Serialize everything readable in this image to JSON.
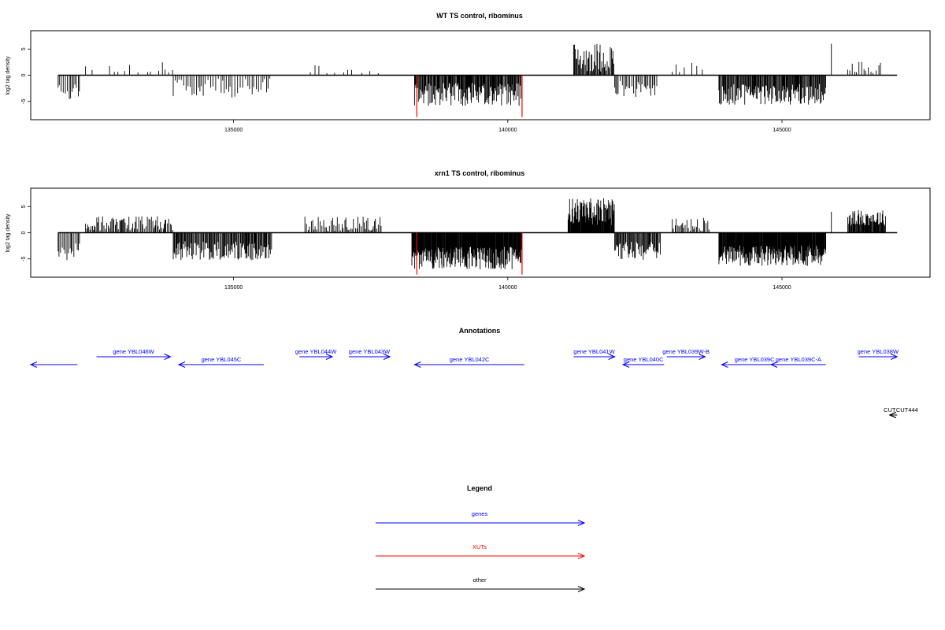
{
  "colors": {
    "genes": "#0000ff",
    "xuts": "#ff0000",
    "other": "#000000",
    "frame": "#000000"
  },
  "chart_data": [
    {
      "type": "bar",
      "title": "WT TS control, ribominus",
      "ylabel": "log2 tag density",
      "xlim": [
        131300,
        147700
      ],
      "ylim": [
        -8.5,
        8.5
      ],
      "xticks": [
        135000,
        140000,
        145000
      ],
      "yticks": [
        5,
        0,
        -5
      ],
      "xut_markers": [
        138340,
        140260
      ],
      "xut_depth": -8,
      "segments": [
        {
          "from": 131800,
          "to": 132200,
          "strand": "-",
          "mean": 2.6,
          "amp": 1.6,
          "step": 30
        },
        {
          "from": 132300,
          "to": 133900,
          "strand": "+",
          "mean": 0.3,
          "amp": 1.8,
          "step": 75,
          "sparse": true
        },
        {
          "from": 133900,
          "to": 135700,
          "strand": "-",
          "mean": 1.9,
          "amp": 1.8,
          "step": 38
        },
        {
          "from": 136400,
          "to": 137700,
          "strand": "+",
          "mean": 0.3,
          "amp": 1.4,
          "step": 110,
          "sparse": true
        },
        {
          "from": 138300,
          "to": 140250,
          "strand": "-",
          "mean": 3.0,
          "amp": 2.2,
          "step": 14
        },
        {
          "from": 141200,
          "to": 141950,
          "strand": "+",
          "mean": 2.6,
          "amp": 2.8,
          "step": 16
        },
        {
          "from": 141950,
          "to": 142750,
          "strand": "-",
          "mean": 2.0,
          "amp": 1.7,
          "step": 30
        },
        {
          "from": 143000,
          "to": 143600,
          "strand": "+",
          "mean": 0.6,
          "amp": 1.6,
          "step": 65,
          "sparse": true
        },
        {
          "from": 143850,
          "to": 145800,
          "strand": "-",
          "mean": 3.1,
          "amp": 2.0,
          "step": 14
        },
        {
          "from": 146200,
          "to": 146800,
          "strand": "+",
          "mean": 1.2,
          "amp": 1.2,
          "step": 45
        }
      ],
      "spikes": [
        {
          "x": 145900,
          "y": 6.0
        }
      ]
    },
    {
      "type": "bar",
      "title": "xrn1 TS control, ribominus",
      "ylabel": "log2 tag density",
      "xlim": [
        131300,
        147700
      ],
      "ylim": [
        -8.5,
        8.5
      ],
      "xticks": [
        135000,
        140000,
        145000
      ],
      "yticks": [
        5,
        0,
        -5
      ],
      "xut_markers": [
        138340,
        140260
      ],
      "xut_depth": -8,
      "segments": [
        {
          "from": 131800,
          "to": 132200,
          "strand": "-",
          "mean": 3.0,
          "amp": 1.8,
          "step": 25
        },
        {
          "from": 132300,
          "to": 133900,
          "strand": "+",
          "mean": 1.4,
          "amp": 1.4,
          "step": 22
        },
        {
          "from": 133900,
          "to": 135700,
          "strand": "-",
          "mean": 2.9,
          "amp": 1.8,
          "step": 16
        },
        {
          "from": 136300,
          "to": 137700,
          "strand": "+",
          "mean": 1.0,
          "amp": 1.6,
          "step": 28
        },
        {
          "from": 138250,
          "to": 140250,
          "strand": "-",
          "mean": 4.2,
          "amp": 2.2,
          "step": 10
        },
        {
          "from": 141100,
          "to": 141950,
          "strand": "+",
          "mean": 3.3,
          "amp": 2.6,
          "step": 10
        },
        {
          "from": 141950,
          "to": 142800,
          "strand": "-",
          "mean": 3.0,
          "amp": 1.8,
          "step": 16
        },
        {
          "from": 143000,
          "to": 143700,
          "strand": "+",
          "mean": 1.0,
          "amp": 1.4,
          "step": 25
        },
        {
          "from": 143850,
          "to": 145800,
          "strand": "-",
          "mean": 3.8,
          "amp": 2.0,
          "step": 10
        },
        {
          "from": 146200,
          "to": 146900,
          "strand": "+",
          "mean": 2.4,
          "amp": 1.5,
          "step": 12
        }
      ],
      "spikes": [
        {
          "x": 145900,
          "y": 4.0
        }
      ]
    }
  ],
  "annotations": {
    "title": "Annotations",
    "genes": [
      {
        "label": "",
        "from": 131300,
        "to": 132150,
        "strand": "-",
        "row": 1
      },
      {
        "label": "gene YBL046W",
        "from": 132500,
        "to": 133850,
        "strand": "+",
        "row": 0
      },
      {
        "label": "gene YBL045C",
        "from": 134000,
        "to": 135550,
        "strand": "-",
        "row": 1
      },
      {
        "label": "gene YBL044W",
        "from": 136200,
        "to": 136800,
        "strand": "+",
        "row": 0
      },
      {
        "label": "gene YBL043W",
        "from": 137100,
        "to": 137850,
        "strand": "+",
        "row": 0
      },
      {
        "label": "gene YBL042C",
        "from": 138300,
        "to": 140300,
        "strand": "-",
        "row": 1
      },
      {
        "label": "gene YBL041W",
        "from": 141200,
        "to": 141950,
        "strand": "+",
        "row": 0
      },
      {
        "label": "gene YBL040C",
        "from": 142100,
        "to": 142850,
        "strand": "-",
        "row": 1
      },
      {
        "label": "gene YBL039W-B",
        "from": 142900,
        "to": 143600,
        "strand": "+",
        "row": 0
      },
      {
        "label": "gene YBL039C",
        "from": 143900,
        "to": 145100,
        "strand": "-",
        "row": 1
      },
      {
        "label": "gene YBL039C-A",
        "from": 144800,
        "to": 145800,
        "strand": "-",
        "row": 1
      },
      {
        "label": "gene YBL038W",
        "from": 146400,
        "to": 147100,
        "strand": "+",
        "row": 0
      }
    ],
    "other": [
      {
        "label": "CUT",
        "from": 146850,
        "to": 147100,
        "strand": "-"
      },
      {
        "label": "CUT444",
        "from": 146850,
        "to": 147100,
        "strand": "-"
      }
    ]
  },
  "legend": {
    "title": "Legend",
    "items": [
      {
        "label": "genes",
        "color": "#0000ff"
      },
      {
        "label": "XUTs",
        "color": "#ff0000"
      },
      {
        "label": "other",
        "color": "#000000"
      }
    ]
  }
}
